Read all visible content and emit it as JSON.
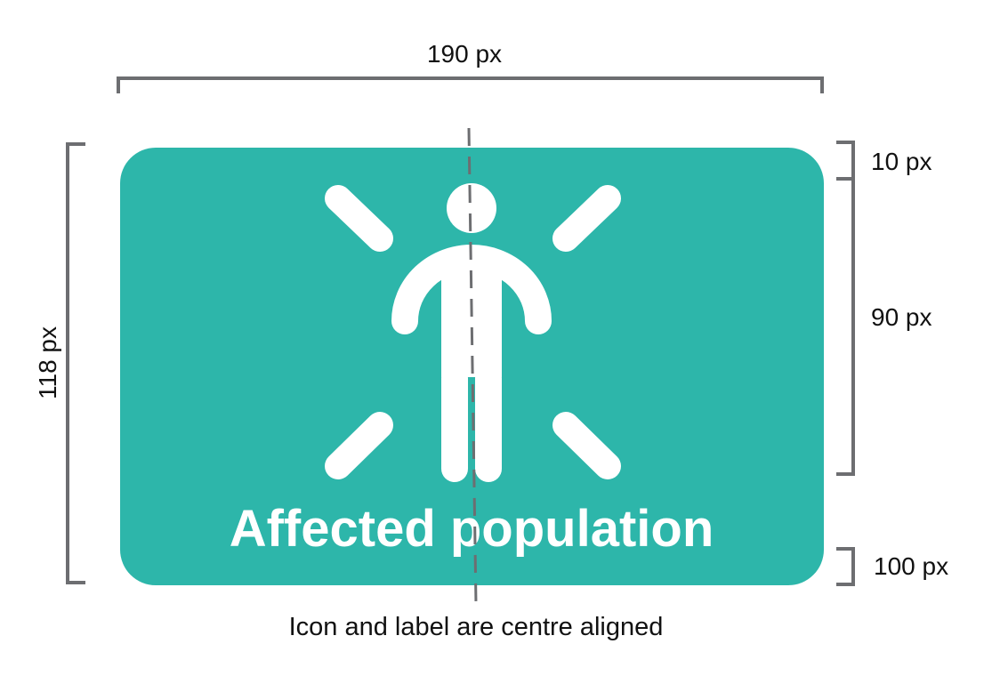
{
  "colors": {
    "card_fill": "#2db6aa",
    "icon": "#ffffff",
    "bracket": "#6d6e71",
    "guide_line": "#6d6e71",
    "text": "#111111"
  },
  "dimensions": {
    "width_label": "190 px",
    "height_label": "118 px",
    "top_padding_label": "10 px",
    "icon_height_label": "90 px",
    "label_height_label": "100 px"
  },
  "card": {
    "label": "Affected population",
    "icon": "person-alert-icon"
  },
  "caption": "Icon and label are centre aligned"
}
